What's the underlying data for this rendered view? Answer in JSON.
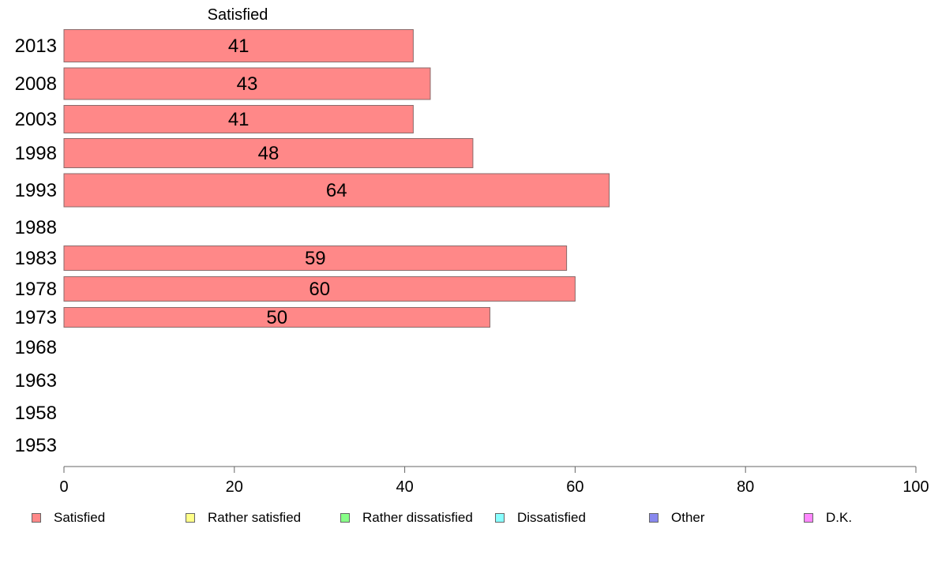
{
  "chart_data": {
    "type": "bar",
    "orientation": "horizontal",
    "title": "Satisfied",
    "categories": [
      "2013",
      "2008",
      "2003",
      "1998",
      "1993",
      "1988",
      "1983",
      "1978",
      "1973",
      "1968",
      "1963",
      "1958",
      "1953"
    ],
    "series": [
      {
        "name": "Satisfied",
        "color": "#ff8888",
        "values": [
          41,
          43,
          41,
          48,
          64,
          null,
          59,
          60,
          50,
          null,
          null,
          null,
          null
        ]
      },
      {
        "name": "Rather satisfied",
        "color": "#ffff88",
        "values": [
          null,
          null,
          null,
          null,
          null,
          null,
          null,
          null,
          null,
          null,
          null,
          null,
          null
        ]
      },
      {
        "name": "Rather dissatisfied",
        "color": "#88ff88",
        "values": [
          null,
          null,
          null,
          null,
          null,
          null,
          null,
          null,
          null,
          null,
          null,
          null,
          null
        ]
      },
      {
        "name": "Dissatisfied",
        "color": "#88ffff",
        "values": [
          null,
          null,
          null,
          null,
          null,
          null,
          null,
          null,
          null,
          null,
          null,
          null,
          null
        ]
      },
      {
        "name": "Other",
        "color": "#8888ee",
        "values": [
          null,
          null,
          null,
          null,
          null,
          null,
          null,
          null,
          null,
          null,
          null,
          null,
          null
        ]
      },
      {
        "name": "D.K.",
        "color": "#ff88ff",
        "values": [
          null,
          null,
          null,
          null,
          null,
          null,
          null,
          null,
          null,
          null,
          null,
          null,
          null
        ]
      }
    ],
    "x_ticks": [
      "0",
      "20",
      "40",
      "60",
      "80",
      "100"
    ],
    "xlim": [
      0,
      100
    ],
    "xlabel": "",
    "ylabel": "",
    "grid": false,
    "legend_position": "bottom"
  }
}
